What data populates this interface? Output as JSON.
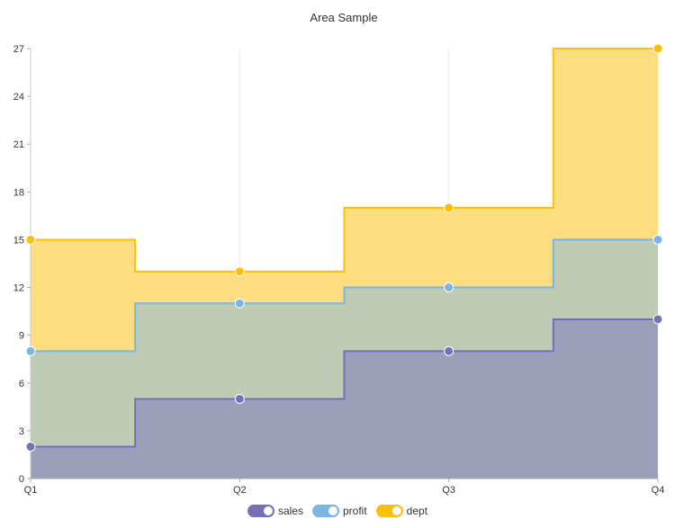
{
  "chart_data": {
    "type": "area",
    "title": "Area Sample",
    "categories": [
      "Q1",
      "Q2",
      "Q3",
      "Q4"
    ],
    "series": [
      {
        "name": "sales",
        "values": [
          2,
          5,
          8,
          10
        ],
        "color": "#7471b8",
        "fill": "#9b9fb9"
      },
      {
        "name": "profit",
        "values": [
          8,
          11,
          12,
          15
        ],
        "color": "#79b6e3",
        "fill": "#bfcbb2"
      },
      {
        "name": "dept",
        "values": [
          15,
          13,
          17,
          27
        ],
        "color": "#fbbf07",
        "fill": "#fddd7f"
      }
    ],
    "stacked": false,
    "step": "middle",
    "ylim": [
      0,
      27
    ],
    "yticks": [
      "0",
      "3",
      "6",
      "9",
      "12",
      "15",
      "18",
      "21",
      "24",
      "27"
    ],
    "grid": true,
    "legend_position": "bottom"
  }
}
